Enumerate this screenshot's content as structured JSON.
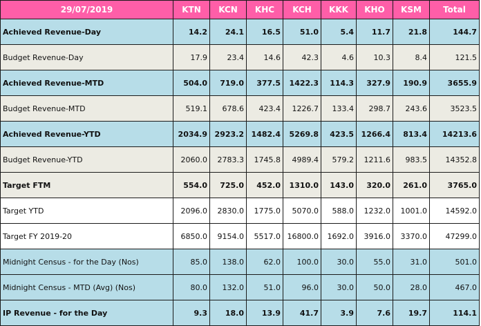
{
  "header": {
    "date": "29/07/2019",
    "columns": [
      "KTN",
      "KCN",
      "KHC",
      "KCH",
      "KKK",
      "KHO",
      "KSM",
      "Total"
    ]
  },
  "rows": [
    {
      "label": "Achieved Revenue-Day",
      "style": "blue",
      "bold": true,
      "values": [
        "14.2",
        "24.1",
        "16.5",
        "51.0",
        "5.4",
        "11.7",
        "21.8",
        "144.7"
      ]
    },
    {
      "label": "Budget Revenue-Day",
      "style": "grey",
      "bold": false,
      "values": [
        "17.9",
        "23.4",
        "14.6",
        "42.3",
        "4.6",
        "10.3",
        "8.4",
        "121.5"
      ]
    },
    {
      "label": "Achieved Revenue-MTD",
      "style": "blue",
      "bold": true,
      "values": [
        "504.0",
        "719.0",
        "377.5",
        "1422.3",
        "114.3",
        "327.9",
        "190.9",
        "3655.9"
      ]
    },
    {
      "label": "Budget Revenue-MTD",
      "style": "grey",
      "bold": false,
      "values": [
        "519.1",
        "678.6",
        "423.4",
        "1226.7",
        "133.4",
        "298.7",
        "243.6",
        "3523.5"
      ]
    },
    {
      "label": "Achieved Revenue-YTD",
      "style": "blue",
      "bold": true,
      "values": [
        "2034.9",
        "2923.2",
        "1482.4",
        "5269.8",
        "423.5",
        "1266.4",
        "813.4",
        "14213.6"
      ]
    },
    {
      "label": "Budget Revenue-YTD",
      "style": "grey",
      "bold": false,
      "values": [
        "2060.0",
        "2783.3",
        "1745.8",
        "4989.4",
        "579.2",
        "1211.6",
        "983.5",
        "14352.8"
      ]
    },
    {
      "label": "Target FTM",
      "style": "grey",
      "bold": true,
      "values": [
        "554.0",
        "725.0",
        "452.0",
        "1310.0",
        "143.0",
        "320.0",
        "261.0",
        "3765.0"
      ]
    },
    {
      "label": "Target YTD",
      "style": "white",
      "bold": false,
      "values": [
        "2096.0",
        "2830.0",
        "1775.0",
        "5070.0",
        "588.0",
        "1232.0",
        "1001.0",
        "14592.0"
      ]
    },
    {
      "label": "Target FY 2019-20",
      "style": "white",
      "bold": false,
      "values": [
        "6850.0",
        "9154.0",
        "5517.0",
        "16800.0",
        "1692.0",
        "3916.0",
        "3370.0",
        "47299.0"
      ]
    },
    {
      "label": "Midnight Census -  for the Day (Nos)",
      "style": "blue",
      "bold": false,
      "values": [
        "85.0",
        "138.0",
        "62.0",
        "100.0",
        "30.0",
        "55.0",
        "31.0",
        "501.0"
      ]
    },
    {
      "label": "Midnight Census - MTD (Avg) (Nos)",
      "style": "blue",
      "bold": false,
      "values": [
        "80.0",
        "132.0",
        "51.0",
        "96.0",
        "30.0",
        "50.0",
        "28.0",
        "467.0"
      ]
    },
    {
      "label": "IP Revenue - for the Day",
      "style": "blue",
      "bold": true,
      "values": [
        "9.3",
        "18.0",
        "13.9",
        "41.7",
        "3.9",
        "7.6",
        "19.7",
        "114.1"
      ]
    }
  ],
  "colors": {
    "header_bg": "#ff5ea8",
    "blue_row": "#b7dde8",
    "grey_row": "#ecebe3",
    "white_row": "#ffffff"
  }
}
